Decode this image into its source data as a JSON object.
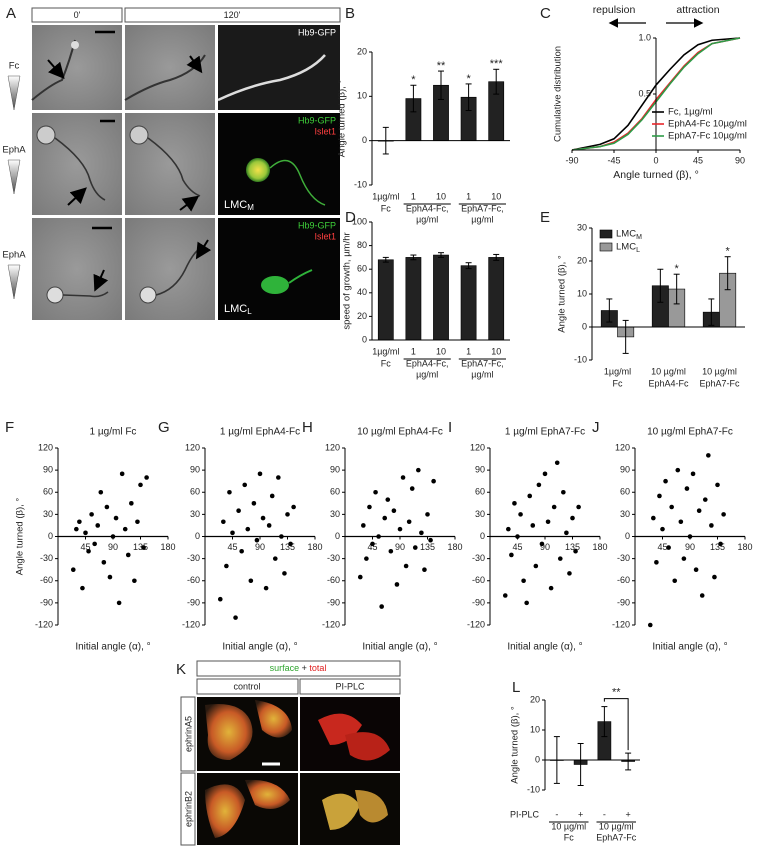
{
  "panel_A": {
    "letter": "A",
    "columns": [
      "0'",
      "120'"
    ],
    "row_labels": [
      "Fc",
      "EphA",
      "EphA"
    ],
    "image_labels": {
      "gfp_1": "Hb9-GFP",
      "gfp_2": "Hb9-GFP",
      "islet_2": "Islet1",
      "cell_2": "LMC",
      "cell_2_sub": "M",
      "gfp_3": "Hb9-GFP",
      "islet_3": "Islet1",
      "cell_3": "LMC",
      "cell_3_sub": "L"
    }
  },
  "panel_K": {
    "letter": "K",
    "stain_surface": "surface",
    "stain_plus": "+",
    "stain_total": "total",
    "columns": [
      "control",
      "PI-PLC"
    ],
    "row_labels": [
      "ephrinA5",
      "ephrinB2"
    ]
  },
  "chart_data": [
    {
      "label": "B",
      "type": "bar",
      "y_label": "Angle turned (β), °",
      "categories": [
        "1µg/ml",
        "1",
        "10",
        "1",
        "10"
      ],
      "groups": [
        {
          "label": [
            "Fc"
          ],
          "size": 1
        },
        {
          "label": [
            "EphA4-Fc,",
            "µg/ml"
          ],
          "size": 2
        },
        {
          "label": [
            "EphA7-Fc,",
            "µg/ml"
          ],
          "size": 2
        }
      ],
      "values": [
        0,
        9.5,
        12.5,
        9.8,
        13.3
      ],
      "errors": [
        3,
        3,
        3.2,
        3,
        2.8
      ],
      "value_annotations": [
        null,
        "*",
        "**",
        "*",
        "***"
      ],
      "color": "#222222",
      "ylim": [
        -10,
        20
      ],
      "yticks": [
        -10,
        0,
        10,
        20
      ]
    },
    {
      "label": "C",
      "type": "line",
      "x_label": "Angle turned (β), °",
      "y_label": "Cumulative distribution",
      "x": [
        -90,
        -60,
        -45,
        -30,
        -15,
        0,
        15,
        30,
        45,
        60,
        90
      ],
      "series": [
        {
          "name": "Fc, 1µg/ml",
          "color": "#000000",
          "values": [
            0,
            0.05,
            0.1,
            0.22,
            0.4,
            0.58,
            0.72,
            0.85,
            0.94,
            0.98,
            1
          ]
        },
        {
          "name": "EphA4-Fc 10µg/ml",
          "color": "#e8262b",
          "values": [
            0,
            0.03,
            0.07,
            0.15,
            0.28,
            0.45,
            0.6,
            0.75,
            0.87,
            0.95,
            1
          ]
        },
        {
          "name": "EphA7-Fc 10µg/ml",
          "color": "#2e9b48",
          "values": [
            0,
            0.03,
            0.06,
            0.14,
            0.27,
            0.43,
            0.59,
            0.74,
            0.86,
            0.95,
            1
          ]
        }
      ],
      "annotations": [
        {
          "text": "repulsion",
          "direction": "left"
        },
        {
          "text": "attraction",
          "direction": "right"
        }
      ],
      "legend": "lower right",
      "xlim": [
        -90,
        90
      ],
      "xticks": [
        -90,
        -45,
        0,
        45,
        90
      ],
      "ylim": [
        0,
        1
      ],
      "yticks": [
        0.5,
        {
          "value": 1,
          "label": "1.0"
        }
      ]
    },
    {
      "label": "D",
      "type": "bar",
      "y_label": "speed of growth, µm/hr",
      "categories": [
        "1µg/ml",
        "1",
        "10",
        "1",
        "10"
      ],
      "groups": [
        {
          "label": [
            "Fc"
          ],
          "size": 1
        },
        {
          "label": [
            "EphA4-Fc,",
            "µg/ml"
          ],
          "size": 2
        },
        {
          "label": [
            "EphA7-Fc,",
            "µg/ml"
          ],
          "size": 2
        }
      ],
      "values": [
        68,
        70,
        72,
        63,
        70
      ],
      "errors": [
        2,
        2,
        2,
        2.5,
        2.5
      ],
      "color": "#222222",
      "ylim": [
        0,
        100
      ],
      "yticks": [
        0,
        20,
        40,
        60,
        80,
        100
      ]
    },
    {
      "label": "E",
      "type": "bar",
      "y_label": "Angle turned (β), °",
      "categories": [
        "1µg/ml",
        "10 µg/ml",
        "10 µg/ml"
      ],
      "groups": [
        {
          "label": [
            "Fc"
          ],
          "size": 1
        },
        {
          "label": [
            "EphA4-Fc"
          ],
          "size": 1
        },
        {
          "label": [
            "EphA7-Fc"
          ],
          "size": 1
        }
      ],
      "series": [
        {
          "name": "LMC",
          "name_sub": "M",
          "color": "#222222",
          "values": [
            5,
            12.5,
            4.5
          ],
          "errors": [
            3.5,
            5,
            4
          ]
        },
        {
          "name": "LMC",
          "name_sub": "L",
          "color": "#999999",
          "values": [
            -3,
            11.5,
            16.3
          ],
          "errors": [
            5,
            4.5,
            5
          ],
          "value_annotations": [
            null,
            "*",
            "*"
          ]
        }
      ],
      "legend": "upper left",
      "ylim": [
        -10,
        30
      ],
      "yticks": [
        -10,
        0,
        10,
        20,
        30
      ]
    },
    {
      "label": "F",
      "type": "scatter",
      "title": "1 µg/ml Fc",
      "x_label": "Initial angle (α), °",
      "y_label": "Angle turned (β), °",
      "color": "#000000",
      "x": [
        25,
        30,
        35,
        40,
        45,
        50,
        55,
        60,
        65,
        70,
        75,
        80,
        85,
        90,
        95,
        100,
        105,
        110,
        115,
        120,
        125,
        130,
        135,
        140,
        145
      ],
      "values": [
        -45,
        10,
        20,
        -70,
        5,
        -20,
        30,
        -10,
        15,
        60,
        -35,
        40,
        -55,
        0,
        25,
        -90,
        85,
        10,
        -25,
        45,
        -60,
        20,
        70,
        -15,
        80
      ],
      "xlim": [
        0,
        180
      ],
      "xticks": [
        45,
        90,
        135,
        180
      ],
      "ylim": [
        -120,
        120
      ],
      "yticks": [
        -120,
        -90,
        -60,
        -30,
        0,
        30,
        60,
        90,
        120
      ]
    },
    {
      "label": "G",
      "type": "scatter",
      "title": "1 µg/ml EphA4-Fc",
      "x_label": "Initial angle (α), °",
      "color": "#000000",
      "x": [
        25,
        30,
        35,
        40,
        45,
        50,
        55,
        60,
        65,
        70,
        75,
        80,
        85,
        90,
        95,
        100,
        105,
        110,
        115,
        120,
        125,
        130,
        135,
        140,
        145
      ],
      "values": [
        -85,
        20,
        -40,
        60,
        5,
        -110,
        35,
        -20,
        70,
        10,
        -60,
        45,
        -5,
        85,
        25,
        -70,
        15,
        55,
        -30,
        80,
        0,
        -50,
        30,
        -10,
        40
      ],
      "xlim": [
        0,
        180
      ],
      "xticks": [
        45,
        90,
        135,
        180
      ],
      "ylim": [
        -120,
        120
      ],
      "yticks": [
        -120,
        -90,
        -60,
        -30,
        0,
        30,
        60,
        90,
        120
      ]
    },
    {
      "label": "H",
      "type": "scatter",
      "title": "10 µg/ml EphA4-Fc",
      "x_label": "Initial angle (α), °",
      "color": "#000000",
      "x": [
        25,
        30,
        35,
        40,
        45,
        50,
        55,
        60,
        65,
        70,
        75,
        80,
        85,
        90,
        95,
        100,
        105,
        110,
        115,
        120,
        125,
        130,
        135,
        140,
        145
      ],
      "values": [
        -55,
        15,
        -30,
        40,
        -10,
        60,
        0,
        -95,
        25,
        50,
        -20,
        35,
        -65,
        10,
        80,
        -40,
        20,
        65,
        -15,
        90,
        5,
        -45,
        30,
        -5,
        75
      ],
      "xlim": [
        0,
        180
      ],
      "xticks": [
        45,
        90,
        135,
        180
      ],
      "ylim": [
        -120,
        120
      ],
      "yticks": [
        -120,
        -90,
        -60,
        -30,
        0,
        30,
        60,
        90,
        120
      ]
    },
    {
      "label": "I",
      "type": "scatter",
      "title": "1 µg/ml EphA7-Fc",
      "x_label": "Initial angle (α), °",
      "color": "#000000",
      "x": [
        25,
        30,
        35,
        40,
        45,
        50,
        55,
        60,
        65,
        70,
        75,
        80,
        85,
        90,
        95,
        100,
        105,
        110,
        115,
        120,
        125,
        130,
        135,
        140,
        145
      ],
      "values": [
        -80,
        10,
        -25,
        45,
        0,
        30,
        -60,
        -90,
        55,
        15,
        -40,
        70,
        -10,
        85,
        20,
        -70,
        40,
        100,
        -30,
        60,
        5,
        -50,
        25,
        -20,
        40
      ],
      "xlim": [
        0,
        180
      ],
      "xticks": [
        45,
        90,
        135,
        180
      ],
      "ylim": [
        -120,
        120
      ],
      "yticks": [
        -120,
        -90,
        -60,
        -30,
        0,
        30,
        60,
        90,
        120
      ]
    },
    {
      "label": "J",
      "type": "scatter",
      "title": "10 µg/ml EphA7-Fc",
      "x_label": "Initial angle (α), °",
      "color": "#000000",
      "x": [
        25,
        30,
        35,
        40,
        45,
        50,
        55,
        60,
        65,
        70,
        75,
        80,
        85,
        90,
        95,
        100,
        105,
        110,
        115,
        120,
        125,
        130,
        135,
        140,
        145
      ],
      "values": [
        -120,
        25,
        -35,
        55,
        10,
        75,
        -15,
        40,
        -60,
        90,
        20,
        -30,
        65,
        0,
        85,
        -45,
        35,
        -80,
        50,
        110,
        15,
        -55,
        70,
        -10,
        30
      ],
      "xlim": [
        0,
        180
      ],
      "xticks": [
        45,
        90,
        135,
        180
      ],
      "ylim": [
        -120,
        120
      ],
      "yticks": [
        -120,
        -90,
        -60,
        -30,
        0,
        30,
        60,
        90,
        120
      ]
    },
    {
      "label": "L",
      "type": "bar",
      "y_label": "Angle turned (β), °",
      "categories": [
        "-",
        "+",
        "-",
        "+"
      ],
      "category_title": "PI-PLC",
      "groups": [
        {
          "label": [
            "10 µg/ml",
            "Fc"
          ],
          "size": 2
        },
        {
          "label": [
            "10 µg/ml",
            "EphA7-Fc"
          ],
          "size": 2
        }
      ],
      "values": [
        0,
        -1.5,
        12.8,
        -0.5
      ],
      "errors": [
        7.8,
        7,
        5,
        2.8
      ],
      "comparisons": [
        {
          "between": [
            2,
            3
          ],
          "label": "**"
        }
      ],
      "color": "#222222",
      "ylim": [
        -10,
        20
      ],
      "yticks": [
        -10,
        0,
        10,
        20
      ]
    }
  ]
}
